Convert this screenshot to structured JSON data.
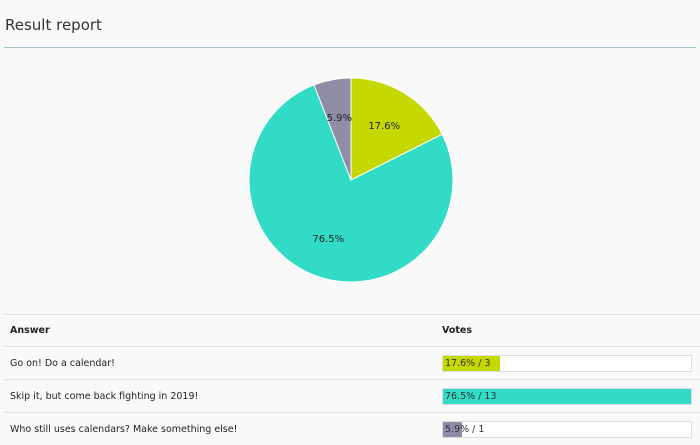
{
  "title": "Result report",
  "chart_data": {
    "type": "pie",
    "slices": [
      {
        "answer": "Go on! Do a calendar!",
        "percent": 17.6,
        "votes": 3,
        "label": "17.6%",
        "color": "#c5d800"
      },
      {
        "answer": "Skip it, but come back fighting in 2019!",
        "percent": 76.5,
        "votes": 13,
        "label": "76.5%",
        "color": "#32dbc6"
      },
      {
        "answer": "Who still uses calendars? Make something else!",
        "percent": 5.9,
        "votes": 1,
        "label": "5.9%",
        "color": "#8f8ca8"
      }
    ]
  },
  "table": {
    "headers": [
      "Answer",
      "Votes"
    ],
    "rows": [
      {
        "answer": "Go on! Do a calendar!",
        "votes_label": "17.6% / 3"
      },
      {
        "answer": "Skip it, but come back fighting in 2019!",
        "votes_label": "76.5% / 13"
      },
      {
        "answer": "Who still uses calendars? Make something else!",
        "votes_label": "5.9% / 1"
      }
    ]
  }
}
